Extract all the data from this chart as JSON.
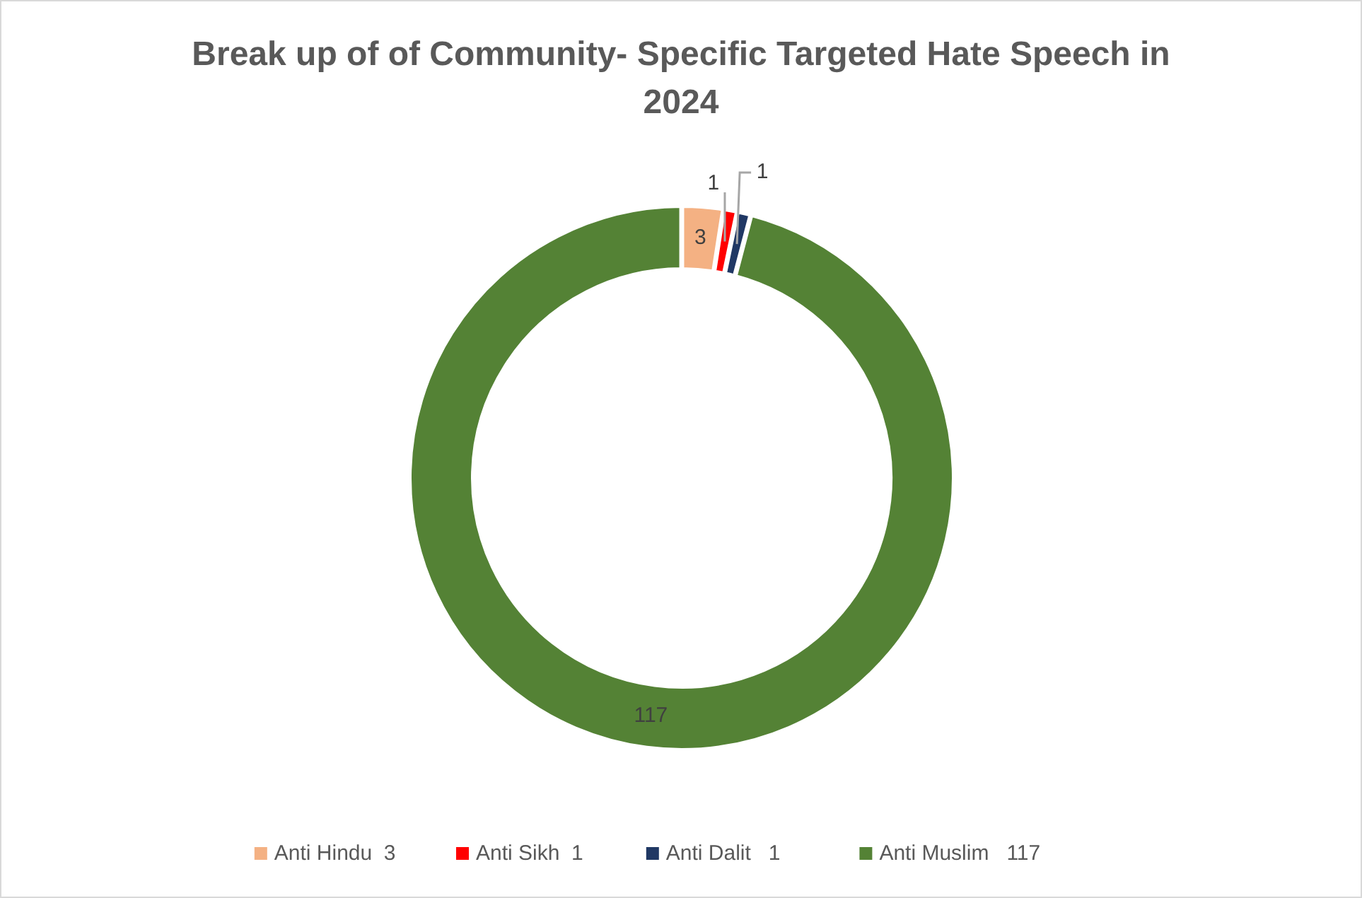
{
  "chart_data": {
    "type": "donut",
    "title": "Break up of of Community- Specific Targeted Hate Speech in 2024",
    "categories": [
      "Anti Hindu  3",
      "Anti Sikh  1",
      "Anti Dalit   1",
      "Anti Muslim   117"
    ],
    "values": [
      3,
      1,
      1,
      117
    ],
    "colors": [
      "#f4b183",
      "#ff0000",
      "#203864",
      "#548235"
    ],
    "data_labels": true,
    "legend": "bottom"
  }
}
